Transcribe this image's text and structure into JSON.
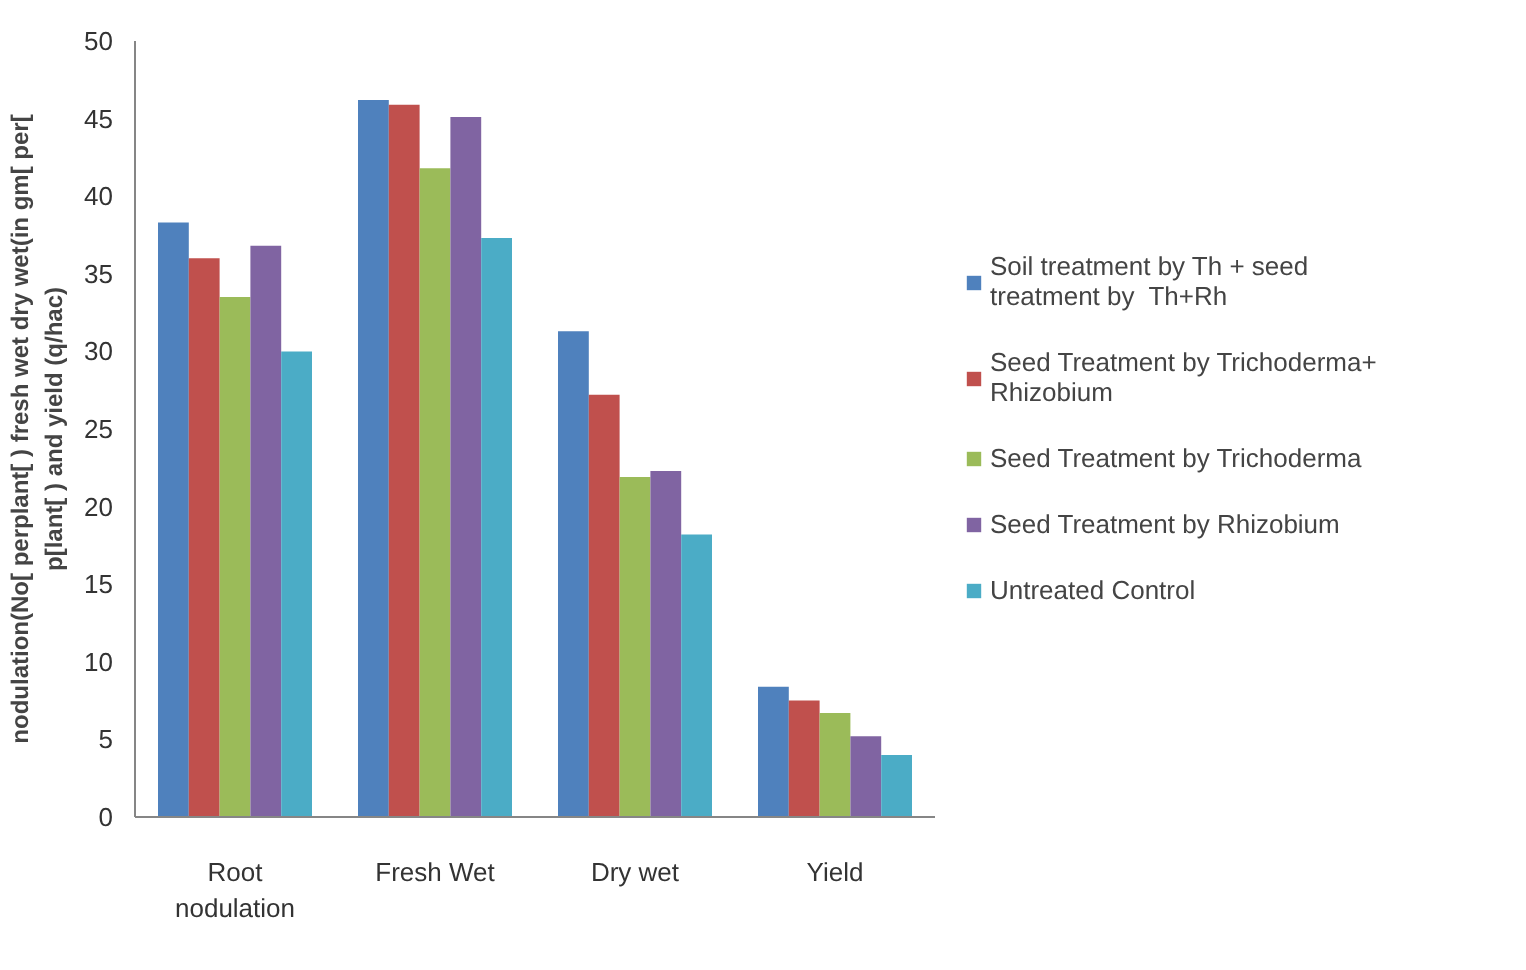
{
  "chart_data": {
    "type": "bar",
    "ylabel": "nodulation(No[ perplant[ ) fresh wet dry wet(in gm[ per[ p[lant[ ) and yield (q/hac)",
    "categories": [
      "Root nodulation",
      "Fresh Wet",
      "Dry wet",
      "Yield"
    ],
    "series": [
      {
        "name": "Soil treatment by Th + seed treatment by  Th+Rh",
        "color": "#4f81bd",
        "values": [
          38.3,
          46.2,
          31.3,
          8.4
        ]
      },
      {
        "name": "Seed Treatment by Trichoderma+ Rhizobium",
        "color": "#c0504d",
        "values": [
          36.0,
          45.9,
          27.2,
          7.5
        ]
      },
      {
        "name": "Seed Treatment by Trichoderma",
        "color": "#9bbb59",
        "values": [
          33.5,
          41.8,
          21.9,
          6.7
        ]
      },
      {
        "name": "Seed Treatment by Rhizobium",
        "color": "#8064a2",
        "values": [
          36.8,
          45.1,
          22.3,
          5.2
        ]
      },
      {
        "name": "Untreated Control",
        "color": "#4bacc6",
        "values": [
          30.0,
          37.3,
          18.2,
          4.0
        ]
      }
    ],
    "ylim": [
      0,
      50
    ],
    "yticks": [
      0,
      5,
      10,
      15,
      20,
      25,
      30,
      35,
      40,
      45,
      50
    ],
    "grid": false,
    "legend": "right"
  }
}
